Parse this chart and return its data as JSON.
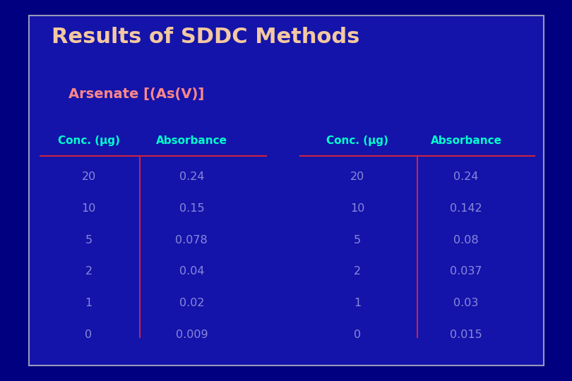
{
  "title": "Results of SDDC Methods",
  "subtitle": "Arsenate [(As(V)]",
  "bg_outer": "#000080",
  "bg_inner": "#1414AA",
  "border_inner_color": "#9999BB",
  "title_color": "#F4C8A0",
  "subtitle_color": "#FF8888",
  "header_color": "#00FFCC",
  "data_conc_color": "#8888DD",
  "data_abs_color": "#8888DD",
  "line_color": "#CC2244",
  "vert_line_color": "#CC2244",
  "col1_header": "Conc. (μg)",
  "col2_header": "Absorbance",
  "col3_header": "Conc. (μg)",
  "col4_header": "Absorbance",
  "left_conc": [
    "20",
    "10",
    "5",
    "2",
    "1",
    "0"
  ],
  "left_abs": [
    "0.24",
    "0.15",
    "0.078",
    "0.04",
    "0.02",
    "0.009"
  ],
  "right_conc": [
    "20",
    "10",
    "5",
    "2",
    "1",
    "0"
  ],
  "right_abs": [
    "0.24",
    "0.142",
    "0.08",
    "0.037",
    "0.03",
    "0.015"
  ],
  "figsize": [
    8.1,
    5.4
  ],
  "dpi": 100
}
